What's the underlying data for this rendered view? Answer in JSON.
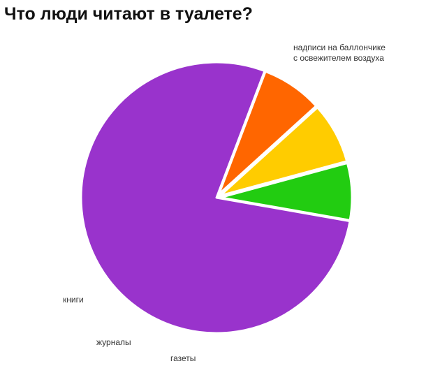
{
  "title": "Что люди читают в туалете?",
  "chart_data": {
    "type": "pie",
    "title": "Что люди читают в туалете?",
    "start_angle_deg": 100,
    "direction": "clockwise",
    "slices": [
      {
        "label": "надписи на баллончике с освежителем воздуха",
        "label_lines": [
          "надписи на баллончике",
          "с освежителем воздуха"
        ],
        "value": 78,
        "color": "#9933cc",
        "exploded": false
      },
      {
        "label": "книги",
        "value": 7.5,
        "color": "#ff6600",
        "exploded": true
      },
      {
        "label": "журналы",
        "value": 7.5,
        "color": "#ffcc00",
        "exploded": true
      },
      {
        "label": "газеты",
        "value": 7,
        "color": "#22cc11",
        "exploded": true
      }
    ],
    "legend": "labels beside slices",
    "grid": false
  }
}
